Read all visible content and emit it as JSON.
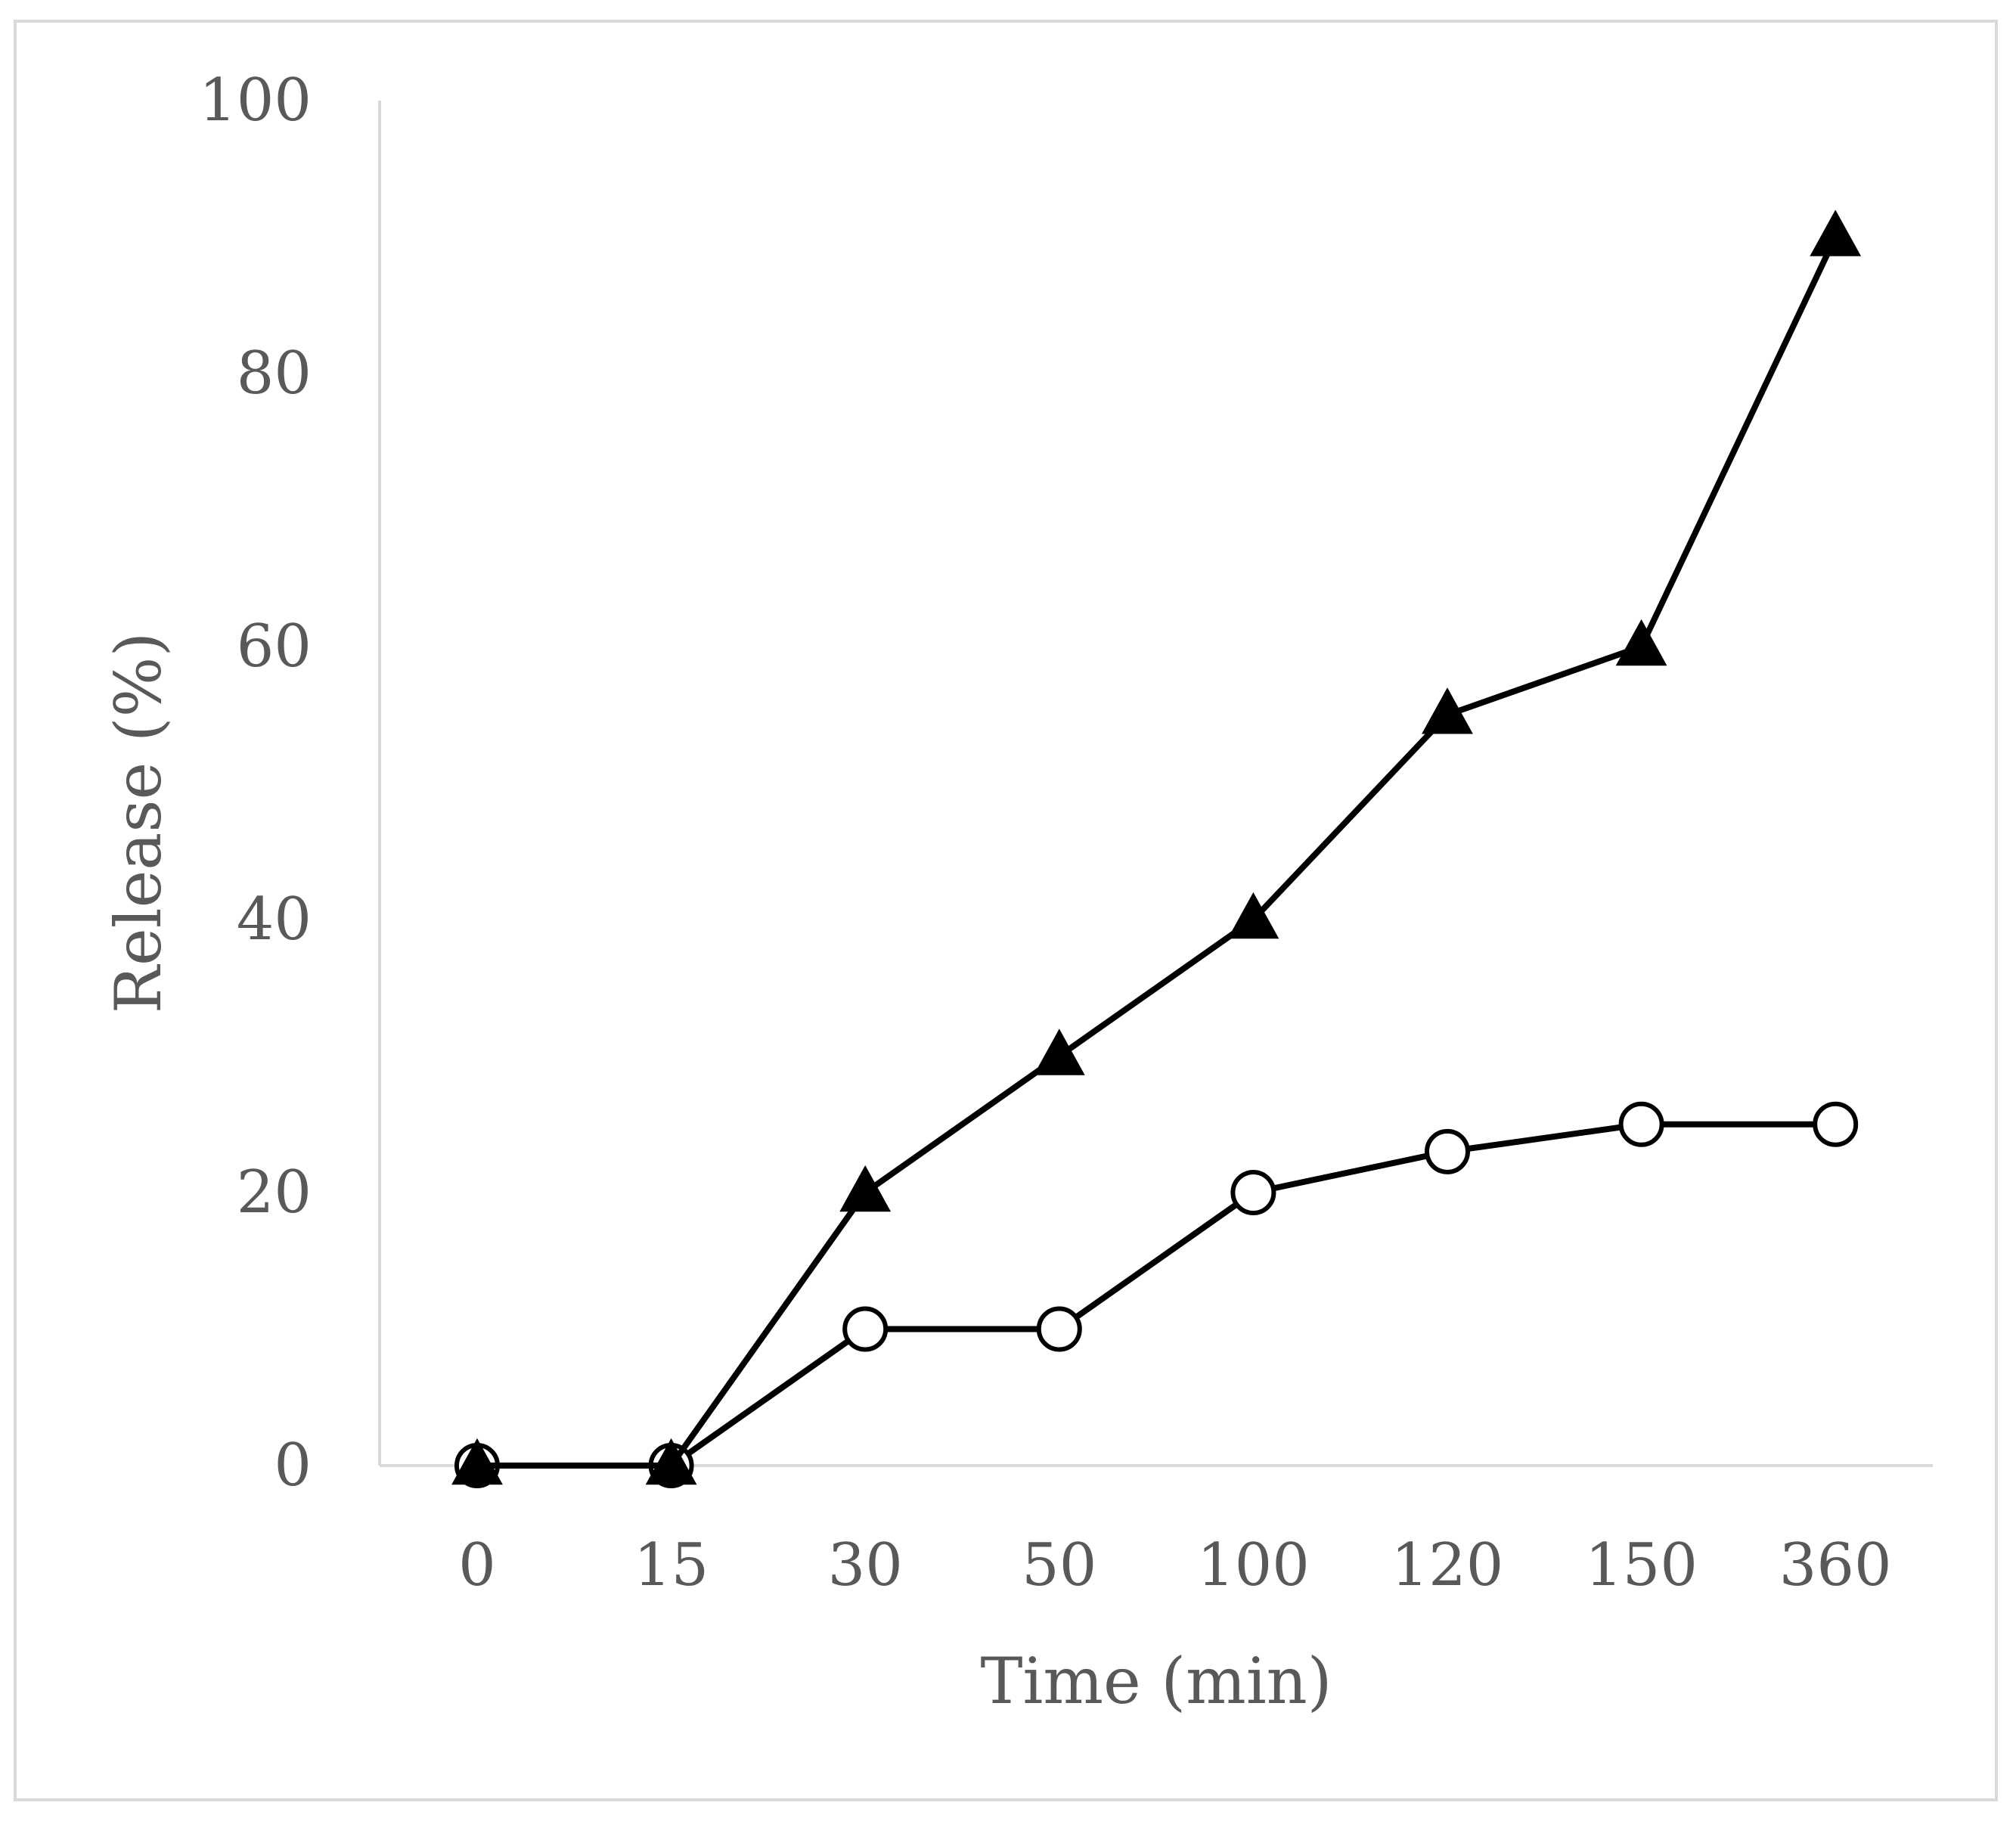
{
  "chart_data": {
    "type": "line",
    "title": "",
    "xlabel": "Time (min)",
    "ylabel": "Release (%)",
    "categories": [
      "0",
      "15",
      "30",
      "50",
      "100",
      "120",
      "150",
      "360"
    ],
    "ylim": [
      0,
      100
    ],
    "yticks": [
      0,
      20,
      40,
      60,
      80,
      100
    ],
    "grid": false,
    "legend": "none",
    "series": [
      {
        "name": "triangle-series",
        "marker": "filled-triangle",
        "color": "#000000",
        "values": [
          0,
          0,
          20,
          30,
          40,
          55,
          60,
          90
        ]
      },
      {
        "name": "circle-series",
        "marker": "open-circle",
        "color": "#000000",
        "values": [
          0,
          0,
          10,
          10,
          20,
          23,
          25,
          25
        ]
      }
    ]
  }
}
